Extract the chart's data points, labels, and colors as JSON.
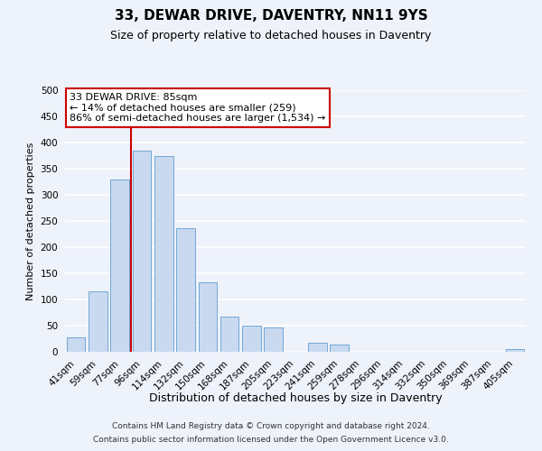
{
  "title": "33, DEWAR DRIVE, DAVENTRY, NN11 9YS",
  "subtitle": "Size of property relative to detached houses in Daventry",
  "xlabel": "Distribution of detached houses by size in Daventry",
  "ylabel": "Number of detached properties",
  "categories": [
    "41sqm",
    "59sqm",
    "77sqm",
    "96sqm",
    "114sqm",
    "132sqm",
    "150sqm",
    "168sqm",
    "187sqm",
    "205sqm",
    "223sqm",
    "241sqm",
    "259sqm",
    "278sqm",
    "296sqm",
    "314sqm",
    "332sqm",
    "350sqm",
    "369sqm",
    "387sqm",
    "405sqm"
  ],
  "values": [
    28,
    116,
    330,
    385,
    375,
    237,
    133,
    68,
    50,
    46,
    0,
    18,
    13,
    0,
    0,
    0,
    0,
    0,
    0,
    0,
    5
  ],
  "bar_color": "#c9d9f0",
  "bar_edge_color": "#6fa8d6",
  "ylim": [
    0,
    500
  ],
  "yticks": [
    0,
    50,
    100,
    150,
    200,
    250,
    300,
    350,
    400,
    450,
    500
  ],
  "marker_label": "33 DEWAR DRIVE: 85sqm",
  "annotation_line1": "← 14% of detached houses are smaller (259)",
  "annotation_line2": "86% of semi-detached houses are larger (1,534) →",
  "marker_color": "#cc0000",
  "box_edge_color": "#cc0000",
  "footer1": "Contains HM Land Registry data © Crown copyright and database right 2024.",
  "footer2": "Contains public sector information licensed under the Open Government Licence v3.0.",
  "background_color": "#eef2fa",
  "plot_background": "#eef2fa",
  "grid_color": "#ffffff",
  "title_fontsize": 11,
  "subtitle_fontsize": 9,
  "xlabel_fontsize": 9,
  "ylabel_fontsize": 8,
  "tick_fontsize": 7.5,
  "footer_fontsize": 6.5,
  "annotation_fontsize": 8
}
